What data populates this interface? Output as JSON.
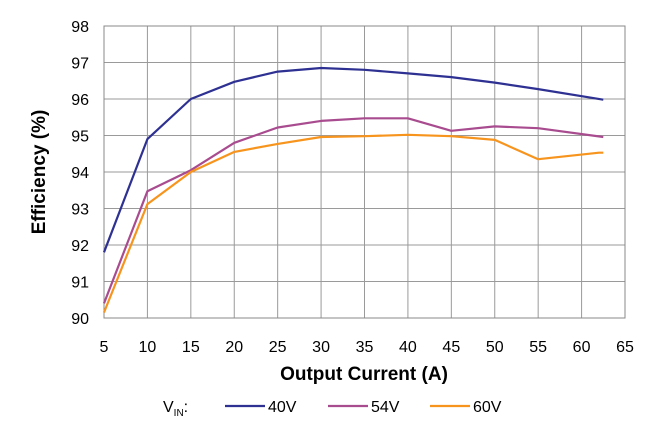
{
  "chart_data": {
    "type": "line",
    "xlabel": "Output Current (A)",
    "ylabel": "Efficiency (%)",
    "xlim": [
      5,
      65
    ],
    "ylim": [
      90,
      98
    ],
    "x_ticks": [
      5,
      10,
      15,
      20,
      25,
      30,
      35,
      40,
      45,
      50,
      55,
      60,
      65
    ],
    "y_ticks": [
      90,
      91,
      92,
      93,
      94,
      95,
      96,
      97,
      98
    ],
    "grid": true,
    "legend": {
      "position": "bottom",
      "prefix_main": "V",
      "prefix_sub": "IN",
      "prefix_suffix": ":"
    },
    "series": [
      {
        "name": "40V",
        "color": "#2e3192",
        "x": [
          5,
          10,
          15,
          20,
          25,
          30,
          35,
          40,
          45,
          50,
          55,
          62.5
        ],
        "y": [
          91.8,
          94.9,
          96.0,
          96.47,
          96.75,
          96.85,
          96.8,
          96.7,
          96.6,
          96.45,
          96.27,
          95.98
        ]
      },
      {
        "name": "54V",
        "color": "#a94c8f",
        "x": [
          5,
          10,
          15,
          20,
          25,
          30,
          35,
          40,
          45,
          50,
          55,
          62.5
        ],
        "y": [
          90.4,
          93.47,
          94.05,
          94.8,
          95.22,
          95.4,
          95.47,
          95.47,
          95.13,
          95.25,
          95.2,
          94.96
        ]
      },
      {
        "name": "60V",
        "color": "#f7941d",
        "x": [
          5,
          10,
          15,
          20,
          25,
          30,
          35,
          40,
          45,
          50,
          55,
          62,
          62.5
        ],
        "y": [
          90.15,
          93.12,
          94.0,
          94.55,
          94.77,
          94.96,
          94.98,
          95.02,
          94.98,
          94.88,
          94.35,
          94.53,
          94.53
        ]
      }
    ]
  }
}
